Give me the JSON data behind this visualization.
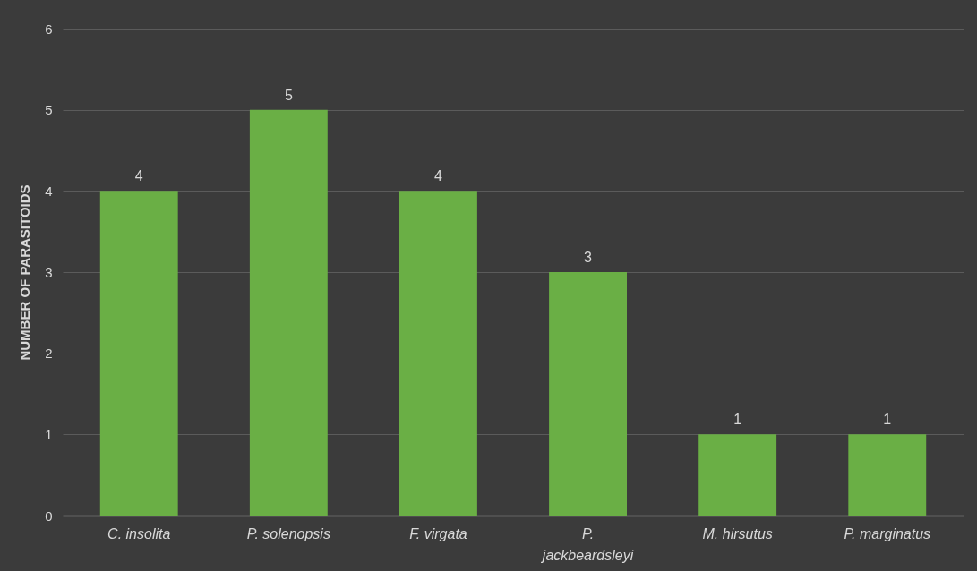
{
  "chart_data": {
    "type": "bar",
    "ylabel": "NUMBER OF PARASITOIDS",
    "categories": [
      "C. insolita",
      "P. solenopsis",
      "F. virgata",
      "P. jackbeardsleyi",
      "M. hirsutus",
      "P. marginatus"
    ],
    "values": [
      4,
      5,
      4,
      3,
      1,
      1
    ],
    "color": "#6aaf45",
    "ylim": [
      0,
      6
    ],
    "yticks": [
      0,
      1,
      2,
      3,
      4,
      5,
      6
    ],
    "grid": "y",
    "data_labels": true
  }
}
